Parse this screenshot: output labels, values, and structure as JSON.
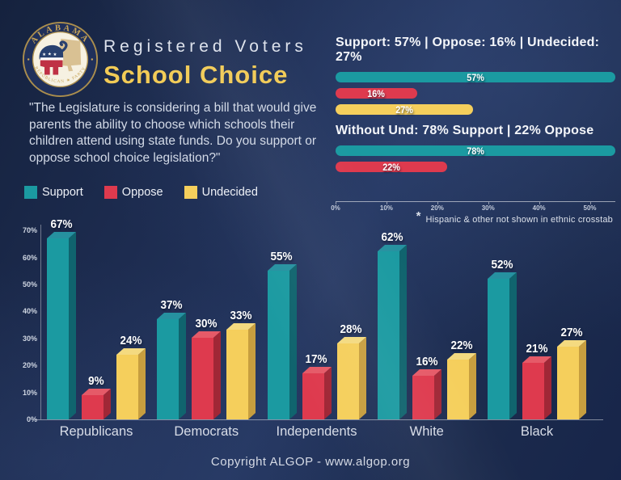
{
  "header": {
    "title_line1": "Registered Voters",
    "title_line2": "School Choice",
    "question": "\"The Legislature is considering a bill that would give parents the ability to choose which schools their children attend using state funds. Do you support or oppose school choice legislation?\""
  },
  "logo": {
    "top_text": "ALABAMA",
    "bottom_text": "REPUBLICAN ★ PARTY"
  },
  "legend": [
    {
      "label": "Support",
      "key": "support"
    },
    {
      "label": "Oppose",
      "key": "oppose"
    },
    {
      "label": "Undecided",
      "key": "undecided"
    }
  ],
  "note": {
    "asterisk": "*",
    "text": "Hispanic & other not shown in ethnic crosstab"
  },
  "footer": {
    "text": "Copyright ALGOP -  www.algop.org"
  },
  "colors": {
    "background": "#1d2c50",
    "title_gold": "#F2CB56",
    "support": "#1B9AA1",
    "oppose": "#DE3A4E",
    "undecided": "#F5CF5C",
    "series3d": {
      "support": {
        "front": "#1B9AA1",
        "side": "#10646E",
        "top": "#2691A0"
      },
      "oppose": {
        "front": "#DE3A4E",
        "side": "#A02736",
        "top": "#E55A68"
      },
      "undecided": {
        "front": "#F5CF5C",
        "side": "#C79E3F",
        "top": "#F4DA80"
      }
    }
  },
  "chart_data": [
    {
      "type": "bar",
      "orientation": "horizontal",
      "title": "Support: 57% | Oppose: 16% | Undecided: 27%",
      "categories": [
        "Support",
        "Oppose",
        "Undecided"
      ],
      "values": [
        57,
        16,
        27
      ],
      "color_keys": [
        "support",
        "oppose",
        "undecided"
      ],
      "xlim": [
        0,
        55
      ],
      "xticks": [
        "0%",
        "10%",
        "20%",
        "30%",
        "40%",
        "50%"
      ],
      "grid": false
    },
    {
      "type": "bar",
      "orientation": "horizontal",
      "title": "Without Und: 78% Support | 22% Oppose",
      "categories": [
        "Support",
        "Oppose"
      ],
      "values": [
        78,
        22
      ],
      "color_keys": [
        "support",
        "oppose"
      ],
      "xlim": [
        0,
        55
      ],
      "xticks": [
        "0%",
        "10%",
        "20%",
        "30%",
        "40%",
        "50%"
      ],
      "grid": false
    },
    {
      "type": "bar",
      "title": "",
      "categories": [
        "Republicans",
        "Democrats",
        "Independents",
        "White",
        "Black"
      ],
      "series": [
        {
          "name": "Support",
          "key": "support",
          "values": [
            67,
            37,
            55,
            62,
            52
          ]
        },
        {
          "name": "Oppose",
          "key": "oppose",
          "values": [
            9,
            30,
            17,
            16,
            21
          ]
        },
        {
          "name": "Undecided",
          "key": "undecided",
          "values": [
            24,
            33,
            28,
            22,
            27
          ]
        }
      ],
      "ylim": [
        0,
        70
      ],
      "yticks": [
        "0%",
        "10%",
        "20%",
        "30%",
        "40%",
        "50%",
        "60%",
        "70%"
      ],
      "legend_position": "top-left",
      "grid": false
    }
  ]
}
